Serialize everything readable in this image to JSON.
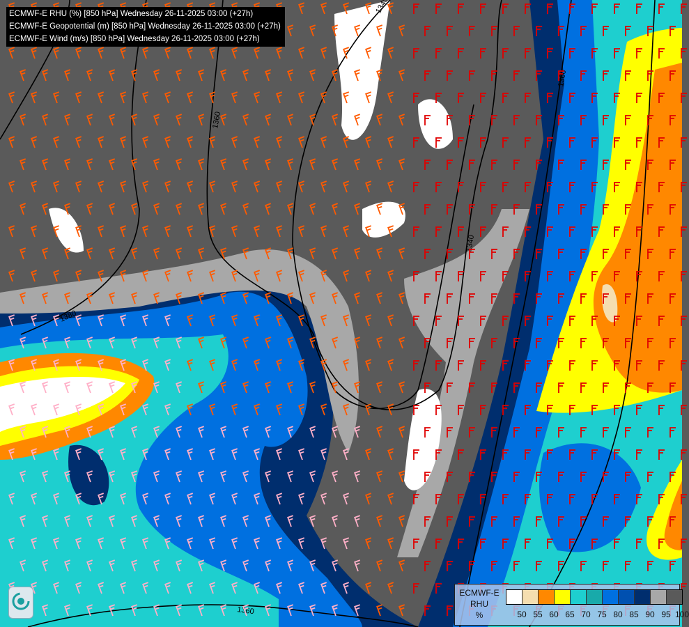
{
  "header": {
    "lines": [
      "ECMWF-E RHU (%) [850 hPa] Wednesday 26-11-2025 03:00 (+27h)",
      "ECMWF-E Geopotential (m) [850 hPa] Wednesday 26-11-2025 03:00 (+27h)",
      "ECMWF-E Wind (m/s) [850 hPa] Wednesday 26-11-2025 03:00 (+27h)"
    ]
  },
  "contour_labels": [
    "1340",
    "1360",
    "1380",
    "1360",
    "1340",
    "1360"
  ],
  "legend": {
    "model": "ECMWF-E",
    "variable": "RHU",
    "unit": "%",
    "colors": [
      "#ffffff",
      "#f5deb0",
      "#ff8800",
      "#ffff00",
      "#1ecfcf",
      "#18aaaa",
      "#0070e0",
      "#0050b0",
      "#002e6e",
      "#a8a8a8",
      "#5a5a5a"
    ],
    "ticks": [
      "50",
      "55",
      "60",
      "65",
      "70",
      "75",
      "80",
      "85",
      "90",
      "95",
      "100"
    ]
  },
  "logo": {
    "icon": "ecmwf-swirl-logo"
  }
}
